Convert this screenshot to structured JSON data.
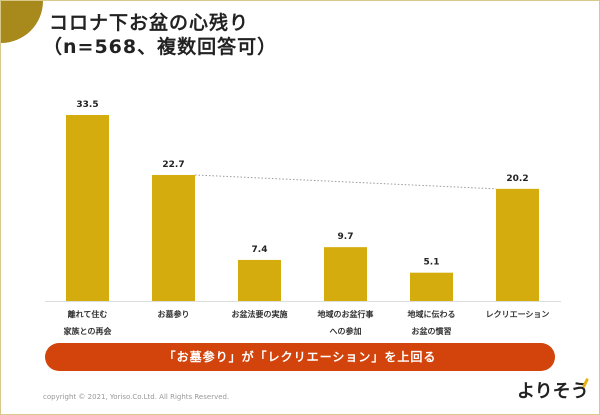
{
  "title_line1": "コロナ下お盆の心残り",
  "title_line2": "（n=568、複数回答可）",
  "chart_data": {
    "type": "bar",
    "categories": [
      [
        "離れて住む",
        "家族との再会"
      ],
      [
        "お墓参り"
      ],
      [
        "お盆法要の実施"
      ],
      [
        "地域のお盆行事",
        "への参加"
      ],
      [
        "地域に伝わる",
        "お盆の慣習"
      ],
      [
        "レクリエーション"
      ]
    ],
    "values": [
      33.5,
      22.7,
      7.4,
      9.7,
      5.1,
      20.2
    ],
    "data_labels": [
      "33.5",
      "22.7",
      "7.4",
      "9.7",
      "5.1",
      "20.2"
    ],
    "ylim": [
      0,
      35
    ],
    "grid": false,
    "bar_color": "#d4ac0d",
    "comparison_line": {
      "from": 1,
      "to": 5,
      "style": "dotted"
    }
  },
  "banner": "「お墓参り」が「レクリエーション」を上回る",
  "banner_color": "#d2440b",
  "copyright": "copyright © 2021, Yoriso.Co.Ltd. All Rights Reserved.",
  "logo": "よりそう"
}
